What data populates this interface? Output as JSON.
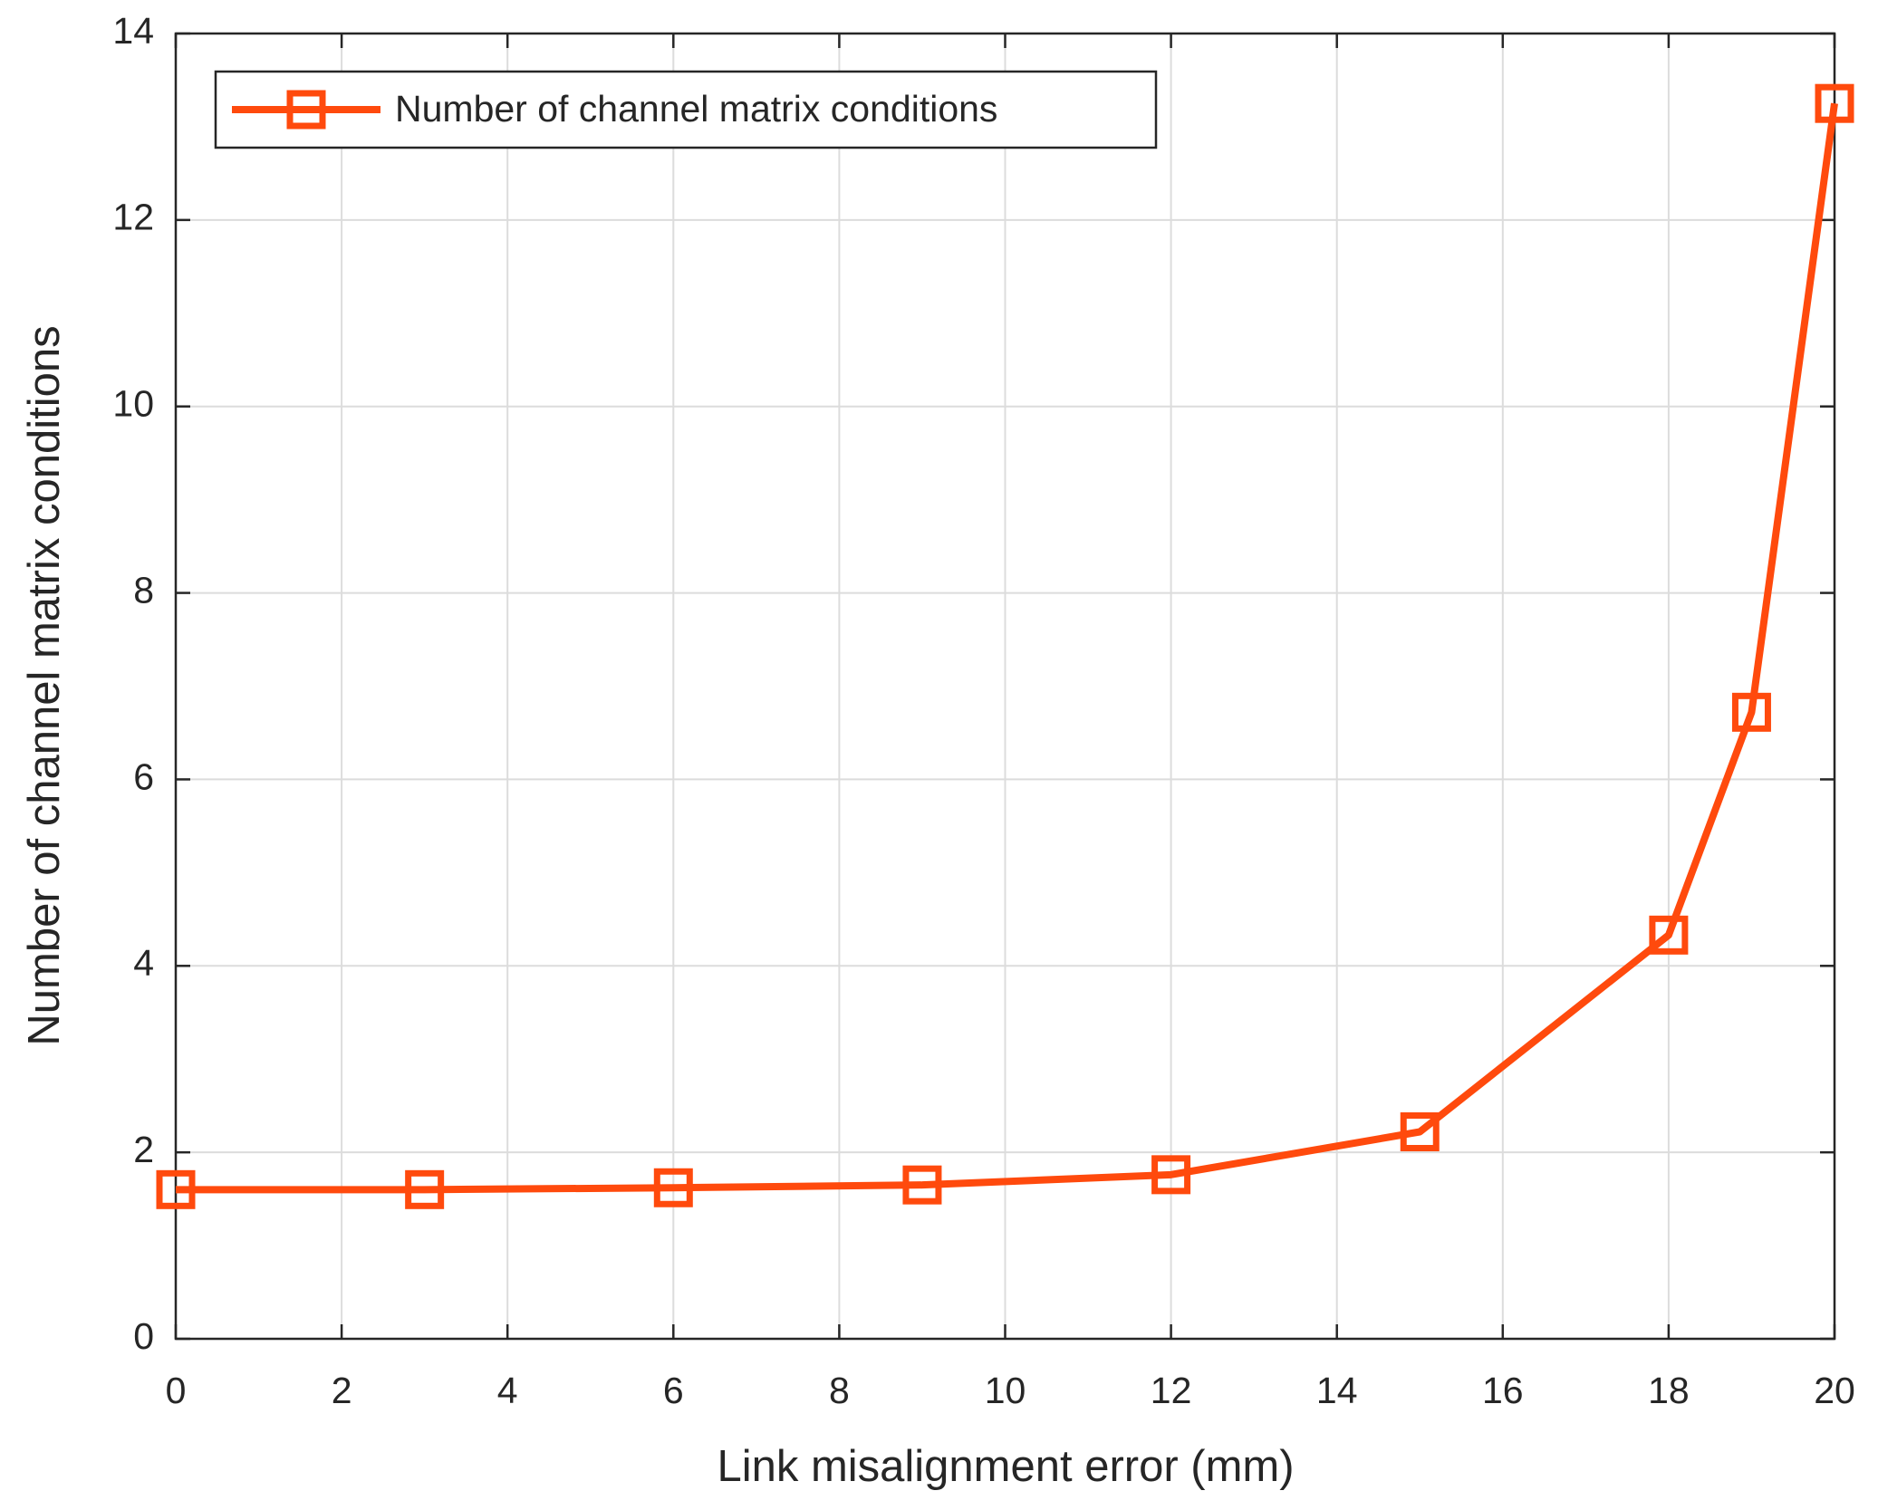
{
  "chart_data": {
    "type": "line",
    "x_label": "Link misalignment error (mm)",
    "y_label": "Number of channel matrix conditions",
    "x": [
      0,
      3,
      6,
      9,
      12,
      15,
      18,
      19,
      20
    ],
    "series": [
      {
        "name": "Number of channel matrix conditions",
        "color": "#ff4a0d",
        "values": [
          1.6,
          1.6,
          1.62,
          1.65,
          1.76,
          2.22,
          4.33,
          6.72,
          13.25
        ]
      }
    ],
    "xlim": [
      0,
      20
    ],
    "xticks": [
      0,
      2,
      4,
      6,
      8,
      10,
      12,
      14,
      16,
      18,
      20
    ],
    "ylim": [
      0,
      14
    ],
    "yticks": [
      0,
      2,
      4,
      6,
      8,
      10,
      12,
      14
    ],
    "grid": true,
    "legend_position": "upper left",
    "marker": "square"
  }
}
